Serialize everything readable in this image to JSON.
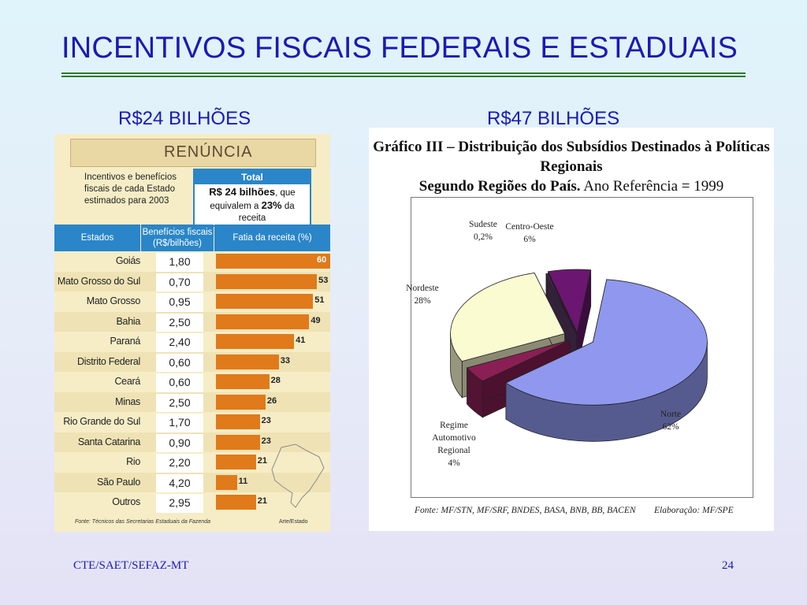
{
  "slide": {
    "title": "INCENTIVOS FISCAIS FEDERAIS E ESTADUAIS",
    "left_subtitle": "R$24 BILHÕES",
    "right_subtitle": "R$47 BILHÕES",
    "footer_left": "CTE/SAET/SEFAZ-MT",
    "page_number": "24",
    "accent_color": "#1a1ab4"
  },
  "left_panel": {
    "header": "RENÚNCIA",
    "note": "Incentivos e benefícios fiscais de cada Estado estimados para 2003",
    "total_title": "Total",
    "total_text_bold": "R$ 24 bilhões",
    "total_text_mid": ", que equivalem a ",
    "total_pct": "23%",
    "total_text_end": " da receita",
    "col_estados": "Estados",
    "col_beneficios": "Benefícios fiscais (R$/bilhões)",
    "col_fatia": "Fatia da receita (%)",
    "source": "Fonte: Técnicos das Secretarias Estaduais da Fazenda",
    "credit": "Arte/Estado",
    "bar_color": "#e07a1a",
    "header_color": "#2a86c8"
  },
  "right_panel": {
    "title_line1": "Gráfico III – Distribuição dos Subsídios Destinados à Políticas Regionais",
    "title_line2_bold": "Segundo Regiões do País.",
    "title_line2_normal": " Ano Referência = 1999",
    "source": "Fonte: MF/STN, MF/SRF, BNDES, BASA, BNB, BB, BACEN",
    "elaboration": "Elaboração: MF/SPE"
  },
  "chart_data": [
    {
      "type": "table",
      "columns": [
        "Estados",
        "Benefícios fiscais (R$/bilhões)",
        "Fatia da receita (%)"
      ],
      "rows": [
        {
          "state": "Goiás",
          "beneficio": "1,80",
          "fatia": 60
        },
        {
          "state": "Mato Grosso do Sul",
          "beneficio": "0,70",
          "fatia": 53
        },
        {
          "state": "Mato Grosso",
          "beneficio": "0,95",
          "fatia": 51
        },
        {
          "state": "Bahia",
          "beneficio": "2,50",
          "fatia": 49
        },
        {
          "state": "Paraná",
          "beneficio": "2,40",
          "fatia": 41
        },
        {
          "state": "Distrito Federal",
          "beneficio": "0,60",
          "fatia": 33
        },
        {
          "state": "Ceará",
          "beneficio": "0,60",
          "fatia": 28
        },
        {
          "state": "Minas",
          "beneficio": "2,50",
          "fatia": 26
        },
        {
          "state": "Rio Grande do Sul",
          "beneficio": "1,70",
          "fatia": 23
        },
        {
          "state": "Santa Catarina",
          "beneficio": "0,90",
          "fatia": 23
        },
        {
          "state": "Rio",
          "beneficio": "2,20",
          "fatia": 21
        },
        {
          "state": "São Paulo",
          "beneficio": "4,20",
          "fatia": 11
        },
        {
          "state": "Outros",
          "beneficio": "2,95",
          "fatia": 21
        }
      ],
      "fatia_max": 60
    },
    {
      "type": "pie",
      "slices": [
        {
          "label": "Norte",
          "value_label": "62%",
          "value": 62,
          "color": "#8f98ee"
        },
        {
          "label": "Regime Automotivo Regional",
          "value_label": "4%",
          "value": 4,
          "color": "#8a1f55"
        },
        {
          "label": "Nordeste",
          "value_label": "28%",
          "value": 28,
          "color": "#fbfbd2"
        },
        {
          "label": "Sudeste",
          "value_label": "0,2%",
          "value": 0.2,
          "color": "#5c3a68"
        },
        {
          "label": "Centro-Oeste",
          "value_label": "6%",
          "value": 6,
          "color": "#6b1670"
        }
      ]
    }
  ]
}
